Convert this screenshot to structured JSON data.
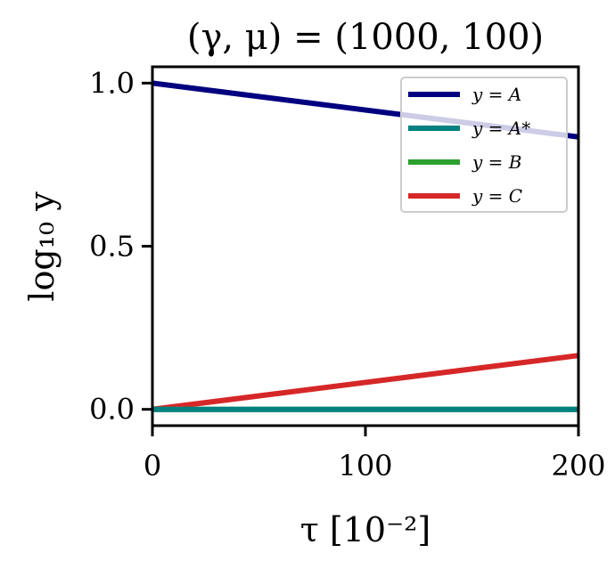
{
  "chart_data": {
    "type": "line",
    "title": "(γ, μ) = (1000, 100)",
    "xlabel": "τ [10⁻²]",
    "ylabel": "log₁₀ y",
    "xlim": [
      0,
      200
    ],
    "ylim": [
      -0.05,
      1.05
    ],
    "xticks": [
      0,
      100,
      200
    ],
    "xtick_labels": [
      "0",
      "100",
      "200"
    ],
    "yticks": [
      0.0,
      0.5,
      1.0
    ],
    "ytick_labels": [
      "0.0",
      "0.5",
      "1.0"
    ],
    "grid": false,
    "legend_position": "top-right",
    "series": [
      {
        "name": "y = A",
        "color": "#000080",
        "x": [
          0,
          200
        ],
        "y": [
          1.0,
          0.835
        ]
      },
      {
        "name": "y = A*",
        "color": "#008080",
        "x": [
          0,
          200
        ],
        "y": [
          0.0,
          0.0
        ]
      },
      {
        "name": "y = B",
        "color": "#2ca02c",
        "x": [
          0,
          200
        ],
        "y": [
          0.0,
          0.0
        ]
      },
      {
        "name": "y = C",
        "color": "#d62728",
        "x": [
          0,
          200
        ],
        "y": [
          0.0,
          0.165
        ]
      }
    ],
    "draw_order": [
      0,
      3,
      2,
      1
    ]
  }
}
